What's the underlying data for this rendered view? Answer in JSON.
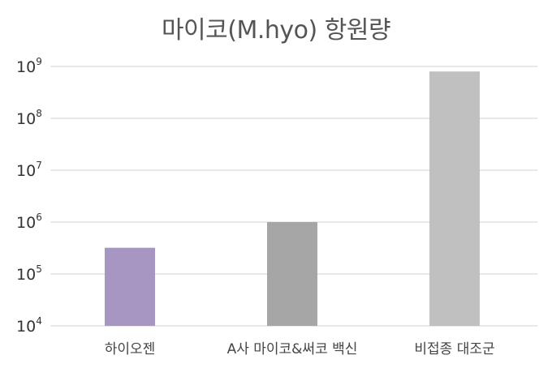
{
  "chart_data": {
    "type": "bar",
    "title": "마이코(M.hyo) 항원량",
    "xlabel": "",
    "ylabel": "",
    "y_scale": "log",
    "ylim": [
      10000,
      1000000000
    ],
    "y_ticks": [
      {
        "base": "10",
        "exp": "4",
        "value": 10000
      },
      {
        "base": "10",
        "exp": "5",
        "value": 100000
      },
      {
        "base": "10",
        "exp": "6",
        "value": 1000000
      },
      {
        "base": "10",
        "exp": "7",
        "value": 10000000
      },
      {
        "base": "10",
        "exp": "8",
        "value": 100000000
      },
      {
        "base": "10",
        "exp": "9",
        "value": 1000000000
      }
    ],
    "categories": [
      "하이오젠",
      "A사 마이코&써코 백신",
      "비접종 대조군"
    ],
    "values": [
      320000,
      1000000,
      800000000
    ],
    "colors": [
      "#a795c2",
      "#a6a6a6",
      "#c0c0c0"
    ],
    "grid": true,
    "gridline_color": "#d9d9d9",
    "legend": "none"
  }
}
